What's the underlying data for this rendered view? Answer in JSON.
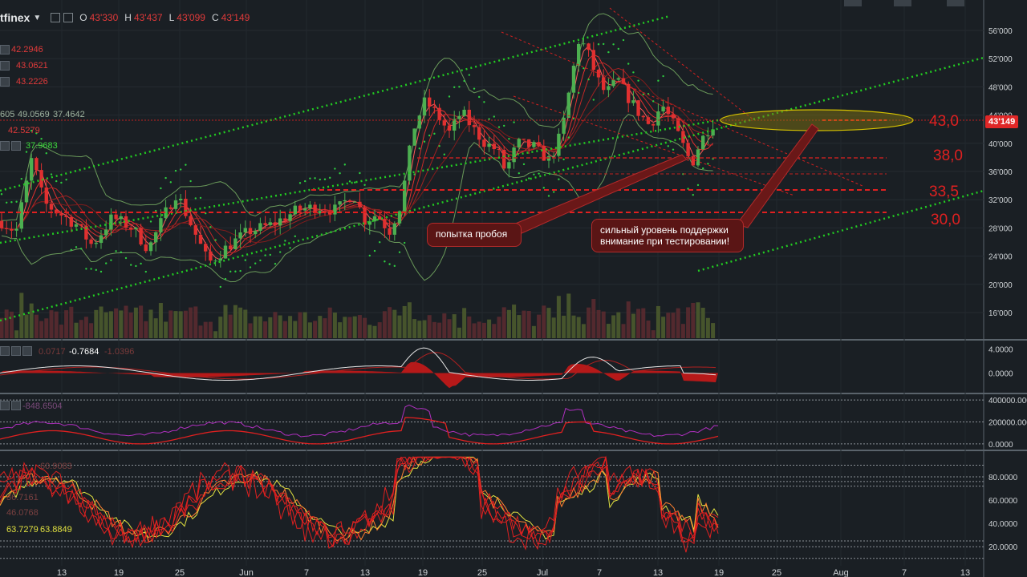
{
  "header": {
    "symbol": "tfinex",
    "open_label": "O",
    "open": "43'330",
    "high_label": "H",
    "high": "43'437",
    "low_label": "L",
    "low": "43'099",
    "close_label": "C",
    "close": "43'149"
  },
  "indicator_values": [
    "42.2946",
    "43.0621",
    "43.2226",
    "605",
    "49.0569",
    "37.4642",
    "42.5279",
    "37.9683"
  ],
  "osc_values": {
    "macd": "-0.7684",
    "macd_faded_1": "0.0717",
    "macd_faded_2": "-1.0396",
    "obv": "-848.6504",
    "rsi_1": "63.7279",
    "rsi_2": "63.8849",
    "rsi_faded": [
      "60.9083",
      "36.7161",
      "46.0768"
    ]
  },
  "annotations": {
    "breakout_attempt": "попытка пробоя",
    "support_note_line1": "сильный уровень поддержки",
    "support_note_line2": "внимание при тестировании!"
  },
  "levels": [
    {
      "label": "43,0",
      "price": 43000
    },
    {
      "label": "38,0",
      "price": 38000
    },
    {
      "label": "33,5",
      "price": 33500
    },
    {
      "label": "30,0",
      "price": 30000
    }
  ],
  "last_price_tag": "43'149",
  "colors": {
    "background": "#1a1f24",
    "up": "#4caf50",
    "down": "#e03030",
    "level": "#e02020",
    "channel": "#22cc22",
    "ellipse": "#c8b400"
  },
  "chart_data": [
    {
      "type": "candlestick",
      "title": "",
      "y_ticks": [
        "56'000",
        "52'000",
        "48'000",
        "44'000",
        "40'000",
        "36'000",
        "32'000",
        "28'000",
        "24'000",
        "20'000",
        "16'000"
      ],
      "x_ticks": [
        "13",
        "19",
        "25",
        "Jun",
        "7",
        "13",
        "19",
        "25",
        "Jul",
        "7",
        "13",
        "19",
        "25",
        "Aug",
        "7",
        "13"
      ],
      "ylim": [
        13000,
        57000
      ],
      "series": [
        {
          "x": [
            "Jun 13",
            "Jun 19",
            "Jun 25",
            "Jul 1",
            "Jul 5",
            "Jul 13",
            "Jul 19"
          ],
          "close": [
            30000,
            43000,
            40000,
            35000,
            54000,
            37000,
            43149
          ]
        }
      ]
    },
    {
      "type": "line",
      "title": "",
      "y_ticks": [
        "4.0000",
        "0.0000"
      ],
      "ylim": [
        -3,
        5
      ]
    },
    {
      "type": "line",
      "title": "",
      "y_ticks": [
        "400000.0000",
        "200000.0000",
        "0.0000"
      ],
      "ylim": [
        -30000,
        430000
      ]
    },
    {
      "type": "line",
      "title": "",
      "y_ticks": [
        "80.0000",
        "60.0000",
        "40.0000",
        "20.0000"
      ],
      "ylim": [
        5,
        100
      ]
    }
  ]
}
